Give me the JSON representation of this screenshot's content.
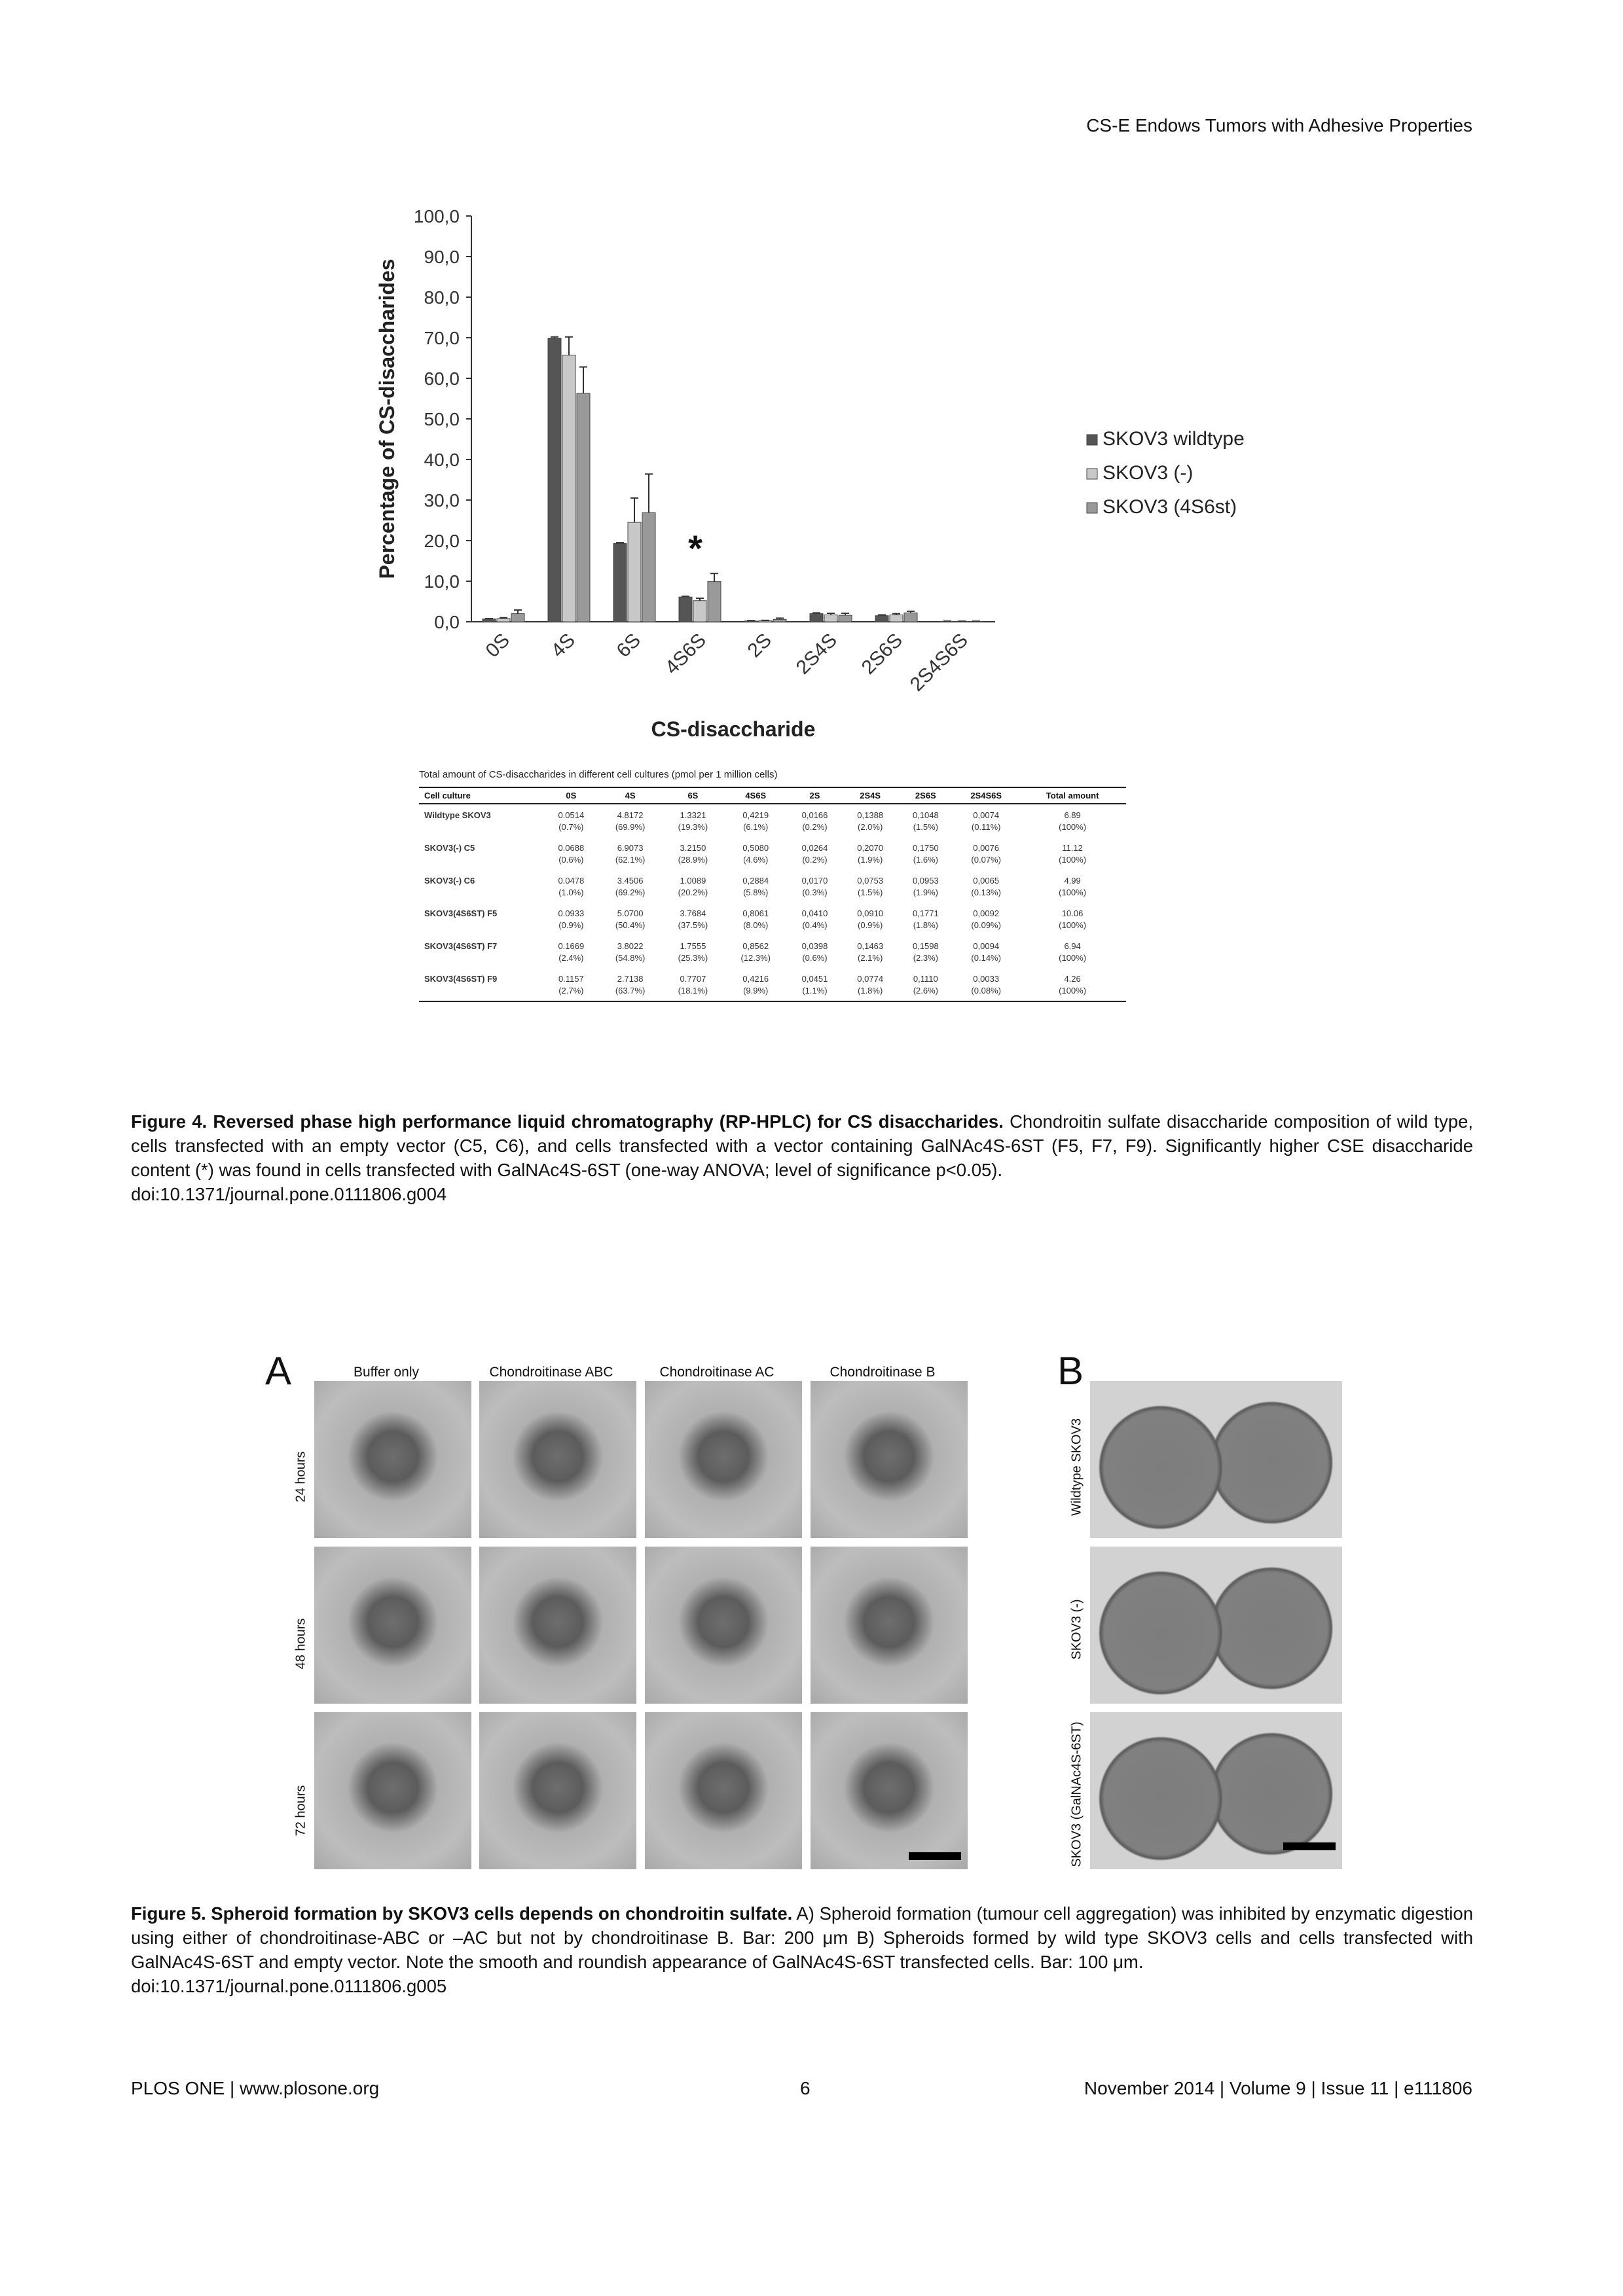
{
  "header": {
    "running_title": "CS-E Endows Tumors with Adhesive Properties"
  },
  "chart_data": {
    "type": "bar",
    "ylabel": "Percentage of CS-disaccharides",
    "xlabel": "CS-disaccharide",
    "ylim": [
      0,
      100
    ],
    "yticks": [
      "0,0",
      "10,0",
      "20,0",
      "30,0",
      "40,0",
      "50,0",
      "60,0",
      "70,0",
      "80,0",
      "90,0",
      "100,0"
    ],
    "categories": [
      "0S",
      "4S",
      "6S",
      "4S6S",
      "2S",
      "2S4S",
      "2S6S",
      "2S4S6S"
    ],
    "series": [
      {
        "name": "SKOV3 wildtype",
        "color": "#555555",
        "values": [
          0.7,
          69.9,
          19.3,
          6.1,
          0.2,
          2.0,
          1.5,
          0.11
        ],
        "errors": [
          0.1,
          0.3,
          0.2,
          0.2,
          0.1,
          0.2,
          0.2,
          0.05
        ]
      },
      {
        "name": "SKOV3 (-)",
        "color": "#c8c8c8",
        "values": [
          0.8,
          65.7,
          24.5,
          5.2,
          0.25,
          1.7,
          1.7,
          0.1
        ],
        "errors": [
          0.2,
          4.5,
          6.0,
          0.6,
          0.1,
          0.4,
          0.3,
          0.05
        ]
      },
      {
        "name": "SKOV3 (4S6st)",
        "color": "#999999",
        "values": [
          2.0,
          56.3,
          26.9,
          9.9,
          0.6,
          1.6,
          2.2,
          0.1
        ],
        "errors": [
          0.9,
          6.5,
          9.5,
          2.0,
          0.3,
          0.5,
          0.4,
          0.05
        ]
      }
    ],
    "annotations": [
      {
        "text": "*",
        "category": "4S6S"
      }
    ],
    "legend_position": "right"
  },
  "table": {
    "title": "Total amount of CS-disaccharides in different cell cultures (pmol per 1 million cells)",
    "headers": [
      "Cell culture",
      "0S",
      "4S",
      "6S",
      "4S6S",
      "2S",
      "2S4S",
      "2S6S",
      "2S4S6S",
      "Total amount"
    ],
    "rows": [
      {
        "label": "Wildtype SKOV3",
        "values": [
          "0.0514",
          "4.8172",
          "1.3321",
          "0,4219",
          "0,0166",
          "0,1388",
          "0,1048",
          "0,0074",
          "6.89"
        ],
        "percents": [
          "(0.7%)",
          "(69.9%)",
          "(19.3%)",
          "(6.1%)",
          "(0.2%)",
          "(2.0%)",
          "(1.5%)",
          "(0.11%)",
          "(100%)"
        ]
      },
      {
        "label": "SKOV3(-) C5",
        "values": [
          "0.0688",
          "6.9073",
          "3.2150",
          "0,5080",
          "0,0264",
          "0,2070",
          "0,1750",
          "0,0076",
          "11.12"
        ],
        "percents": [
          "(0.6%)",
          "(62.1%)",
          "(28.9%)",
          "(4.6%)",
          "(0.2%)",
          "(1.9%)",
          "(1.6%)",
          "(0.07%)",
          "(100%)"
        ]
      },
      {
        "label": "SKOV3(-) C6",
        "values": [
          "0.0478",
          "3.4506",
          "1.0089",
          "0,2884",
          "0,0170",
          "0,0753",
          "0,0953",
          "0,0065",
          "4.99"
        ],
        "percents": [
          "(1.0%)",
          "(69.2%)",
          "(20.2%)",
          "(5.8%)",
          "(0.3%)",
          "(1.5%)",
          "(1.9%)",
          "(0.13%)",
          "(100%)"
        ]
      },
      {
        "label": "SKOV3(4S6ST) F5",
        "values": [
          "0.0933",
          "5.0700",
          "3.7684",
          "0,8061",
          "0,0410",
          "0,0910",
          "0,1771",
          "0,0092",
          "10.06"
        ],
        "percents": [
          "(0.9%)",
          "(50.4%)",
          "(37.5%)",
          "(8.0%)",
          "(0.4%)",
          "(0.9%)",
          "(1.8%)",
          "(0.09%)",
          "(100%)"
        ]
      },
      {
        "label": "SKOV3(4S6ST) F7",
        "values": [
          "0.1669",
          "3.8022",
          "1.7555",
          "0,8562",
          "0,0398",
          "0,1463",
          "0,1598",
          "0,0094",
          "6.94"
        ],
        "percents": [
          "(2.4%)",
          "(54.8%)",
          "(25.3%)",
          "(12.3%)",
          "(0.6%)",
          "(2.1%)",
          "(2.3%)",
          "(0.14%)",
          "(100%)"
        ]
      },
      {
        "label": "SKOV3(4S6ST) F9",
        "values": [
          "0.1157",
          "2.7138",
          "0.7707",
          "0,4216",
          "0,0451",
          "0,0774",
          "0,1110",
          "0,0033",
          "4.26"
        ],
        "percents": [
          "(2.7%)",
          "(63.7%)",
          "(18.1%)",
          "(9.9%)",
          "(1.1%)",
          "(1.8%)",
          "(2.6%)",
          "(0.08%)",
          "(100%)"
        ]
      }
    ]
  },
  "figure4": {
    "caption_bold": "Figure 4. Reversed phase high performance liquid chromatography (RP-HPLC) for CS disaccharides.",
    "caption_text": " Chondroitin sulfate disaccharide composition of wild type, cells transfected with an empty vector (C5, C6), and cells transfected with a vector containing GalNAc4S-6ST (F5, F7, F9). Significantly higher CSE disaccharide content (*) was found in cells transfected with GalNAc4S-6ST (one-way ANOVA; level of significance p<0.05).",
    "doi": "doi:10.1371/journal.pone.0111806.g004"
  },
  "figure5": {
    "panel_a": {
      "letter": "A",
      "columns": [
        "Buffer only",
        "Chondroitinase ABC",
        "Chondroitinase AC",
        "Chondroitinase B"
      ],
      "rows": [
        "24 hours",
        "48 hours",
        "72 hours"
      ]
    },
    "panel_b": {
      "letter": "B",
      "rows": [
        "Wildtype SKOV3",
        "SKOV3 (-)",
        "SKOV3 (GalNAc4S-6ST)"
      ]
    },
    "caption_bold": "Figure 5. Spheroid formation by SKOV3 cells depends on chondroitin sulfate.",
    "caption_text": " A) Spheroid formation (tumour cell aggregation) was inhibited by enzymatic digestion using either of chondroitinase-ABC or –AC but not by chondroitinase B. Bar: 200 μm B) Spheroids formed by wild type SKOV3 cells and cells transfected with GalNAc4S-6ST and empty vector. Note the smooth and roundish appearance of GalNAc4S-6ST transfected cells. Bar: 100 μm.",
    "doi": "doi:10.1371/journal.pone.0111806.g005"
  },
  "footer": {
    "left": "PLOS ONE | www.plosone.org",
    "center": "6",
    "right": "November 2014 | Volume 9 | Issue 11 | e111806"
  }
}
